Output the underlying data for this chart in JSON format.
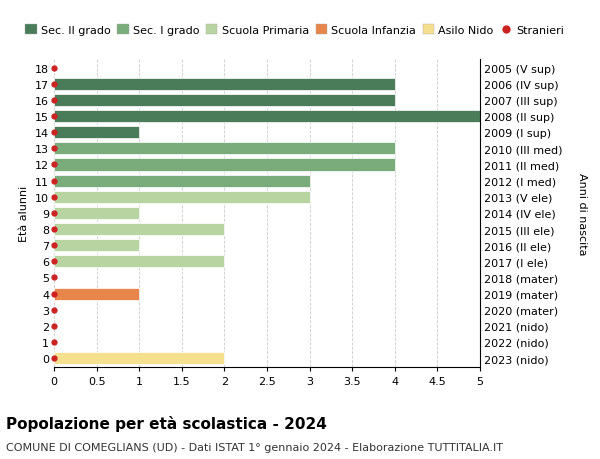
{
  "ages": [
    18,
    17,
    16,
    15,
    14,
    13,
    12,
    11,
    10,
    9,
    8,
    7,
    6,
    5,
    4,
    3,
    2,
    1,
    0
  ],
  "right_labels": [
    "2005 (V sup)",
    "2006 (IV sup)",
    "2007 (III sup)",
    "2008 (II sup)",
    "2009 (I sup)",
    "2010 (III med)",
    "2011 (II med)",
    "2012 (I med)",
    "2013 (V ele)",
    "2014 (IV ele)",
    "2015 (III ele)",
    "2016 (II ele)",
    "2017 (I ele)",
    "2018 (mater)",
    "2019 (mater)",
    "2020 (mater)",
    "2021 (nido)",
    "2022 (nido)",
    "2023 (nido)"
  ],
  "bars": [
    {
      "age": 18,
      "value": 0,
      "color": "#4a7c59"
    },
    {
      "age": 17,
      "value": 4,
      "color": "#4a7c59"
    },
    {
      "age": 16,
      "value": 4,
      "color": "#4a7c59"
    },
    {
      "age": 15,
      "value": 5,
      "color": "#4a7c59"
    },
    {
      "age": 14,
      "value": 1,
      "color": "#4a7c59"
    },
    {
      "age": 13,
      "value": 4,
      "color": "#7aab7a"
    },
    {
      "age": 12,
      "value": 4,
      "color": "#7aab7a"
    },
    {
      "age": 11,
      "value": 3,
      "color": "#7aab7a"
    },
    {
      "age": 10,
      "value": 3,
      "color": "#b8d4a0"
    },
    {
      "age": 9,
      "value": 1,
      "color": "#b8d4a0"
    },
    {
      "age": 8,
      "value": 2,
      "color": "#b8d4a0"
    },
    {
      "age": 7,
      "value": 1,
      "color": "#b8d4a0"
    },
    {
      "age": 6,
      "value": 2,
      "color": "#b8d4a0"
    },
    {
      "age": 5,
      "value": 0,
      "color": "#e8854a"
    },
    {
      "age": 4,
      "value": 1,
      "color": "#e8854a"
    },
    {
      "age": 3,
      "value": 0,
      "color": "#e8854a"
    },
    {
      "age": 2,
      "value": 0,
      "color": "#f5e090"
    },
    {
      "age": 1,
      "value": 0,
      "color": "#f5e090"
    },
    {
      "age": 0,
      "value": 2,
      "color": "#f5e090"
    }
  ],
  "dot_color": "#cc2222",
  "xlim": [
    0,
    5.0
  ],
  "xticks": [
    0,
    0.5,
    1.0,
    1.5,
    2.0,
    2.5,
    3.0,
    3.5,
    4.0,
    4.5,
    5.0
  ],
  "ylabel": "Età alunni",
  "right_ylabel": "Anni di nascita",
  "title": "Popolazione per età scolastica - 2024",
  "subtitle": "COMUNE DI COMEGLIANS (UD) - Dati ISTAT 1° gennaio 2024 - Elaborazione TUTTITALIA.IT",
  "legend_entries": [
    {
      "label": "Sec. II grado",
      "color": "#4a7c59",
      "type": "patch"
    },
    {
      "label": "Sec. I grado",
      "color": "#7aab7a",
      "type": "patch"
    },
    {
      "label": "Scuola Primaria",
      "color": "#b8d4a0",
      "type": "patch"
    },
    {
      "label": "Scuola Infanzia",
      "color": "#e8854a",
      "type": "patch"
    },
    {
      "label": "Asilo Nido",
      "color": "#f5e090",
      "type": "patch"
    },
    {
      "label": "Stranieri",
      "color": "#cc2222",
      "type": "dot"
    }
  ],
  "bar_height": 0.75,
  "background_color": "#ffffff",
  "grid_color": "#cccccc",
  "title_fontsize": 11,
  "subtitle_fontsize": 8,
  "axis_fontsize": 8,
  "legend_fontsize": 8
}
